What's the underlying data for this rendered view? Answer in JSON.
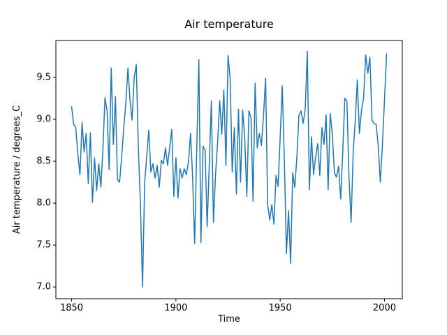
{
  "chart_data": {
    "type": "line",
    "title": "Air temperature",
    "xlabel": "Time",
    "ylabel": "Air temperature / degrees_C",
    "x_ticks": [
      1850,
      1900,
      1950,
      2000
    ],
    "y_ticks": [
      7.0,
      7.5,
      8.0,
      8.5,
      9.0,
      9.5
    ],
    "xlim": [
      1842.45,
      2008.55
    ],
    "ylim": [
      6.86,
      9.94
    ],
    "grid": false,
    "legend": "none",
    "line_color": "#1f77b4",
    "series": [
      {
        "name": "air-temperature",
        "year_start": 1850,
        "year_end": 2001,
        "year_step": 1,
        "values": [
          9.15,
          8.94,
          8.9,
          8.58,
          8.34,
          8.96,
          8.61,
          8.83,
          8.23,
          8.84,
          8.01,
          8.54,
          8.15,
          8.47,
          8.19,
          8.63,
          9.26,
          9.1,
          8.4,
          9.61,
          8.7,
          9.27,
          8.28,
          8.25,
          8.55,
          8.9,
          9.2,
          9.61,
          9.22,
          8.99,
          9.5,
          9.65,
          8.66,
          7.97,
          7.0,
          8.24,
          8.55,
          8.87,
          8.37,
          8.47,
          8.3,
          8.45,
          8.19,
          8.51,
          8.47,
          8.66,
          8.45,
          8.66,
          8.88,
          8.08,
          8.54,
          8.06,
          8.41,
          8.3,
          8.41,
          8.34,
          8.49,
          8.83,
          8.33,
          7.52,
          8.65,
          9.71,
          7.53,
          8.68,
          8.63,
          7.72,
          8.45,
          9.22,
          7.77,
          8.34,
          8.73,
          9.22,
          8.82,
          9.35,
          8.45,
          9.76,
          9.49,
          8.37,
          8.9,
          8.11,
          9.12,
          8.25,
          9.11,
          8.78,
          8.08,
          9.1,
          9.02,
          8.02,
          9.43,
          8.66,
          8.83,
          8.69,
          9.05,
          9.49,
          7.99,
          7.8,
          7.98,
          7.75,
          8.33,
          8.2,
          8.8,
          9.4,
          8.52,
          7.4,
          7.91,
          7.28,
          8.36,
          8.19,
          8.54,
          9.05,
          9.1,
          8.95,
          9.12,
          9.81,
          8.16,
          8.79,
          8.34,
          8.55,
          8.71,
          8.33,
          8.9,
          8.7,
          9.05,
          8.16,
          9.07,
          8.83,
          8.36,
          8.31,
          8.44,
          8.05,
          8.6,
          9.25,
          9.22,
          8.3,
          7.77,
          8.61,
          9.0,
          9.47,
          8.83,
          9.11,
          9.25,
          9.77,
          9.55,
          9.74,
          8.99,
          8.95,
          8.94,
          8.69,
          8.25,
          8.69,
          9.23,
          9.78
        ]
      }
    ]
  }
}
